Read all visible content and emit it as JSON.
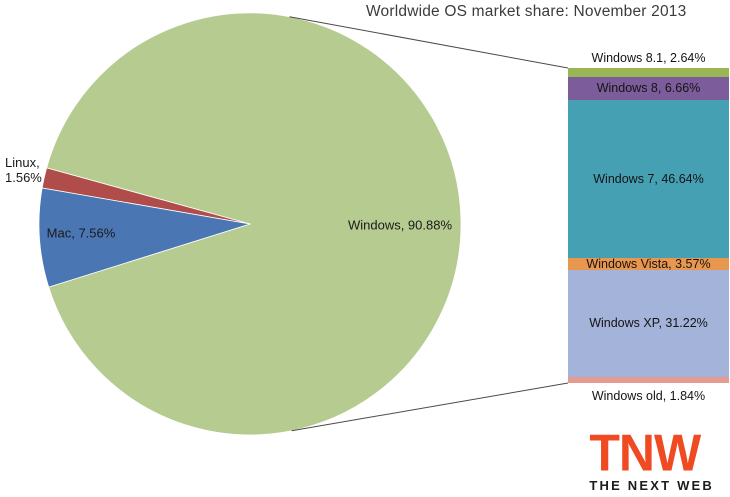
{
  "page": {
    "background": "#ffffff"
  },
  "chart_data": {
    "type": "pie",
    "variant": "pie-of-pie-with-bar-breakdown",
    "title": "Worldwide OS market share: November 2013",
    "legend_position": "none",
    "grid": false,
    "text_color": "#1a1a1a",
    "title_color": "#3c3c3c",
    "connector_color": "#4a4a4a",
    "pie": {
      "start_angle_deg": 197.4,
      "sweep_direction": "ccw",
      "slices": [
        {
          "name": "Windows",
          "value": 90.88,
          "unit": "%",
          "label": "Windows, 90.88%",
          "color": "#b6cb90",
          "label_position": "inside"
        },
        {
          "name": "Linux",
          "value": 1.56,
          "unit": "%",
          "label": "Linux, 1.56%",
          "label_lines": [
            "Linux,",
            "1.56%"
          ],
          "color": "#b04d4a",
          "label_position": "outside-left"
        },
        {
          "name": "Mac",
          "value": 7.56,
          "unit": "%",
          "label": "Mac, 7.56%",
          "color": "#4b76b4",
          "label_position": "inside"
        }
      ]
    },
    "bar_breakdown": {
      "of_slice": "Windows",
      "segments": [
        {
          "name": "Windows 8.1",
          "value": 2.64,
          "label": "Windows 8.1, 2.64%",
          "color": "#9ab653",
          "label_position": "above"
        },
        {
          "name": "Windows 8",
          "value": 6.66,
          "label": "Windows 8, 6.66%",
          "color": "#7c5c9a",
          "label_position": "inside"
        },
        {
          "name": "Windows 7",
          "value": 46.64,
          "label": "Windows 7, 46.64%",
          "color": "#46a0b4",
          "label_position": "inside"
        },
        {
          "name": "Windows Vista",
          "value": 3.57,
          "label": "Windows Vista, 3.57%",
          "color": "#e9974f",
          "label_position": "inside"
        },
        {
          "name": "Windows XP",
          "value": 31.22,
          "label": "Windows XP, 31.22%",
          "color": "#a3b3d9",
          "label_position": "inside"
        },
        {
          "name": "Windows old",
          "value": 1.84,
          "label": "Windows old, 1.84%",
          "color": "#e59a92",
          "label_position": "below"
        }
      ]
    }
  },
  "logo": {
    "acronym": "TNW",
    "tagline": "THE NEXT WEB",
    "accent_color": "#f04a23",
    "tagline_color": "#1d1d1b"
  }
}
